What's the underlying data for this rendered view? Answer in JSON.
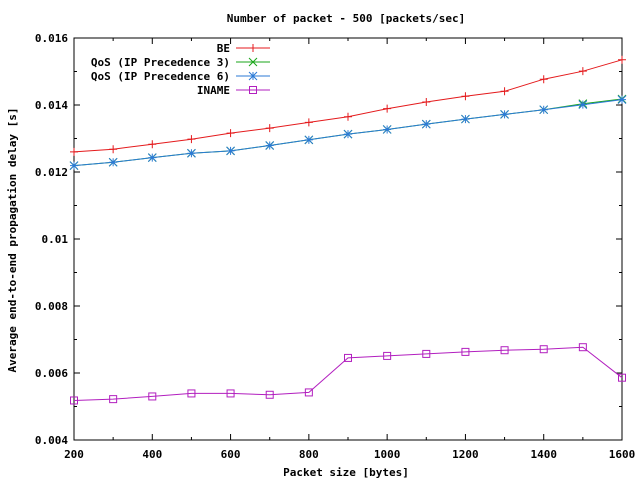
{
  "chart_data": {
    "type": "line",
    "title": "Number of packet - 500 [packets/sec]",
    "xlabel": "Packet size [bytes]",
    "ylabel": "Average end-to-end propagation delay [s]",
    "xlim": [
      200,
      1600
    ],
    "ylim": [
      0.004,
      0.016
    ],
    "xticks": [
      200,
      400,
      600,
      800,
      1000,
      1200,
      1400,
      1600
    ],
    "xtick_labels": [
      "200",
      "400",
      "600",
      "800",
      "1000",
      "1200",
      "1400",
      "1600"
    ],
    "yticks": [
      0.004,
      0.006,
      0.008,
      0.01,
      0.012,
      0.014,
      0.016
    ],
    "ytick_labels": [
      "0.004",
      "0.006",
      "0.008",
      "0.01",
      "0.012",
      "0.014",
      "0.016"
    ],
    "grid": false,
    "legend_position": "top-right",
    "x": [
      200,
      300,
      400,
      500,
      600,
      700,
      800,
      900,
      1000,
      1100,
      1200,
      1300,
      1400,
      1500,
      1600
    ],
    "series": [
      {
        "name": "BE",
        "color": "#e41a1c",
        "marker": "plus",
        "values": [
          0.0126,
          0.01268,
          0.01283,
          0.01298,
          0.01316,
          0.01331,
          0.01348,
          0.01365,
          0.01389,
          0.01409,
          0.01426,
          0.01441,
          0.01477,
          0.01501,
          0.01535
        ]
      },
      {
        "name": "QoS (IP Precedence 3)",
        "color": "#1aa61a",
        "marker": "cross",
        "values": [
          0.01219,
          0.01229,
          0.01243,
          0.01256,
          0.01263,
          0.01279,
          0.01296,
          0.01313,
          0.01327,
          0.01343,
          0.01358,
          0.01372,
          0.01386,
          0.01404,
          0.01418
        ]
      },
      {
        "name": "QoS (IP Precedence 6)",
        "color": "#2b7ad6",
        "marker": "star",
        "values": [
          0.01219,
          0.01229,
          0.01243,
          0.01256,
          0.01263,
          0.01279,
          0.01296,
          0.01313,
          0.01327,
          0.01343,
          0.01358,
          0.01372,
          0.01386,
          0.01401,
          0.01416
        ]
      },
      {
        "name": "INAME",
        "color": "#b21fbf",
        "marker": "square",
        "values": [
          0.00518,
          0.00522,
          0.0053,
          0.00539,
          0.00539,
          0.00535,
          0.00542,
          0.00645,
          0.00651,
          0.00657,
          0.00663,
          0.00668,
          0.00671,
          0.00677,
          0.00586
        ]
      }
    ]
  }
}
